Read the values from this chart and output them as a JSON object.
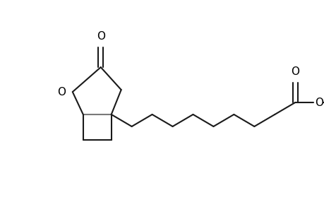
{
  "bg_color": "#ffffff",
  "bond_color": "#1a1a1a",
  "gray_color": "#7a7a7a",
  "o_color": "#000000",
  "line_width": 1.5,
  "figsize": [
    4.6,
    3.0
  ],
  "dpi": 100,
  "xlim": [
    0,
    460
  ],
  "ylim": [
    0,
    300
  ]
}
